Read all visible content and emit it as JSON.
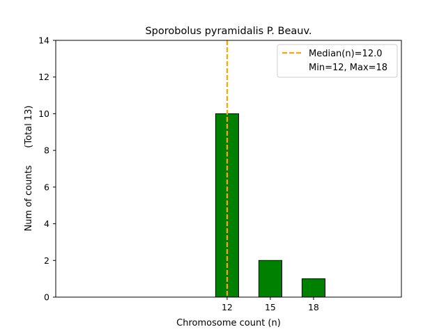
{
  "chart_data": {
    "type": "bar",
    "title": "Sporobolus pyramidalis P. Beauv.",
    "xlabel": "Chromosome count (n)",
    "ylabel": "Num of counts      (Total 13)",
    "categories": [
      12,
      15,
      18
    ],
    "values": [
      10,
      2,
      1
    ],
    "x_tick_labels": [
      "12",
      "15",
      "18"
    ],
    "xlim": [
      0.1,
      24.1
    ],
    "ylim": [
      0,
      14
    ],
    "y_ticks": [
      0,
      2,
      4,
      6,
      8,
      10,
      12,
      14
    ],
    "bar_color": "#008000",
    "bar_edge_color": "#000000",
    "median": {
      "value": 12.0,
      "color": "#FFA500",
      "label": "Median(n)=12.0"
    },
    "legend": {
      "position": "top-right",
      "entries": [
        "Median(n)=12.0",
        "Min=12, Max=18"
      ]
    },
    "grid": false
  }
}
